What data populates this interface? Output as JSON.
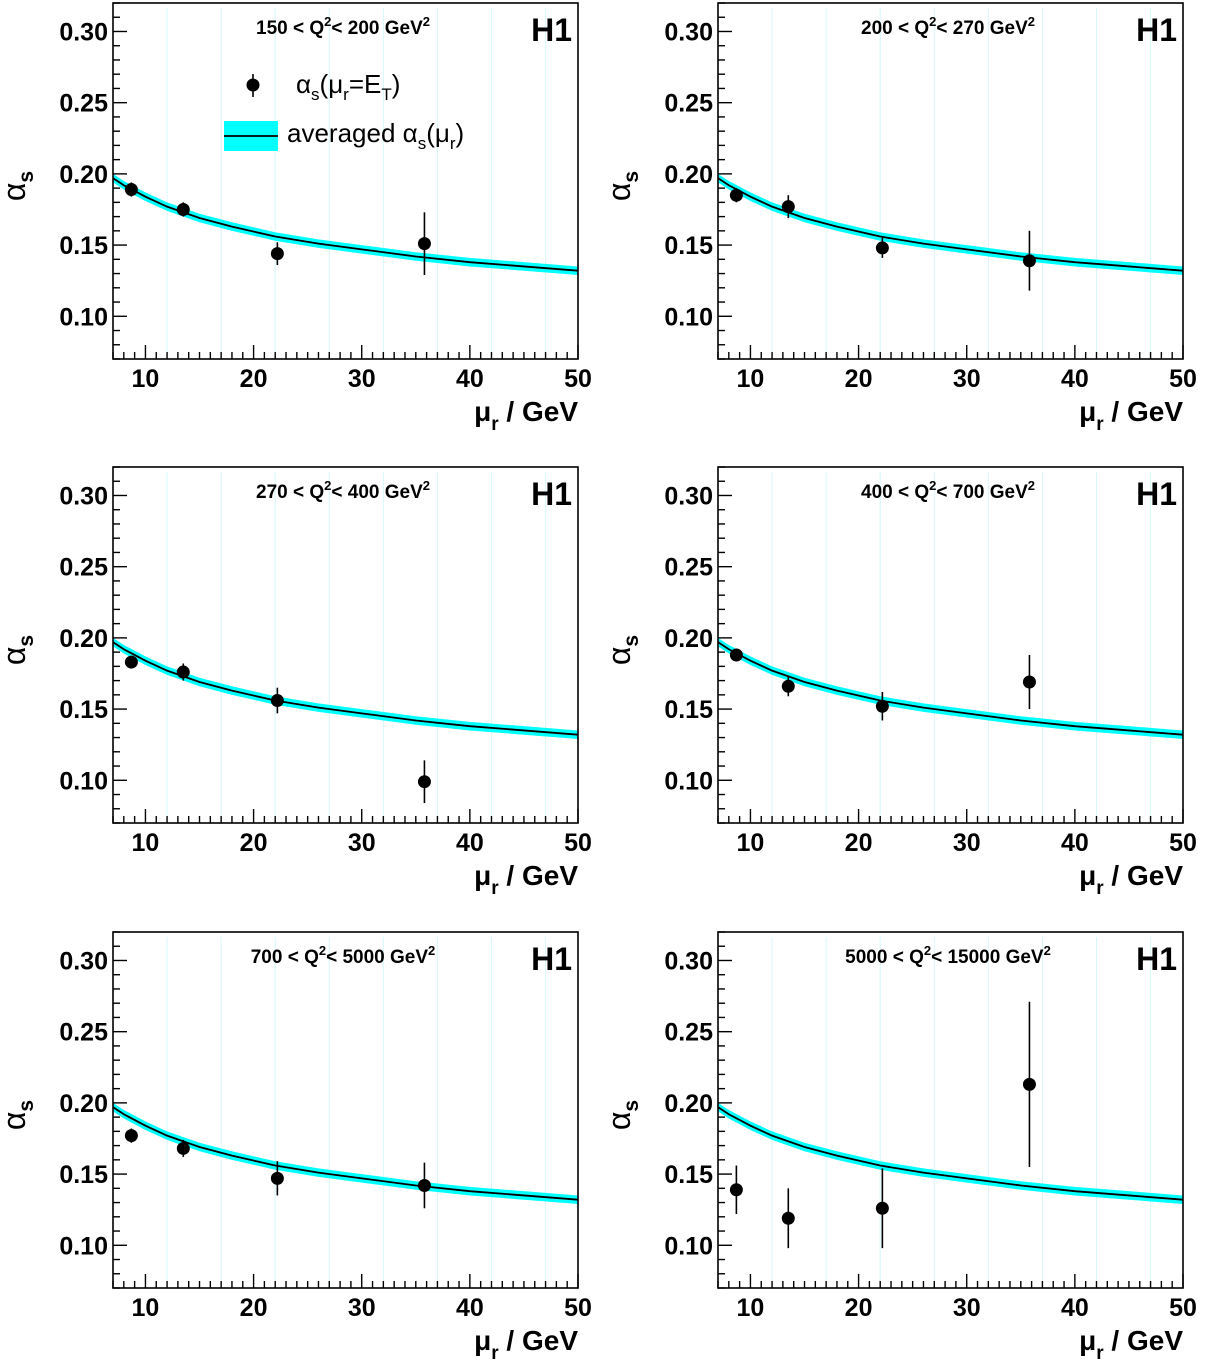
{
  "colors": {
    "band": "#00ffff",
    "curve": "#000000",
    "points": "#000000",
    "axes": "#000000",
    "background": "#ffffff"
  },
  "axis_titles": {
    "x_main": "μ",
    "x_sub": "r",
    "x_unit": " / GeV",
    "y_main": "α",
    "y_sub": "s"
  },
  "legend": {
    "points_main": "α",
    "points_sub": "s",
    "points_rest_open": "(μ",
    "points_rest_sub": "r",
    "points_rest_eq": "=E",
    "points_rest_sub2": "T",
    "points_rest_close": ")",
    "band_text": "averaged α",
    "band_sub": "s",
    "band_open": "(μ",
    "band_sub2": "r",
    "band_close": ")"
  },
  "chart_data": [
    {
      "type": "scatter",
      "experiment_label": "H1",
      "range_label": {
        "pre": "150 < Q",
        "sup": "2",
        "mid": "< 200 GeV",
        "sup2": "2"
      },
      "xlim": [
        7,
        50
      ],
      "ylim": [
        0.07,
        0.32
      ],
      "x_ticks": [
        "10",
        "20",
        "30",
        "40",
        "50"
      ],
      "y_ticks": [
        "0.10",
        "0.15",
        "0.20",
        "0.25",
        "0.30"
      ],
      "points": [
        {
          "x": 8.7,
          "y": 0.189,
          "err": 0.005
        },
        {
          "x": 13.5,
          "y": 0.175,
          "err": 0.005
        },
        {
          "x": 22.2,
          "y": 0.144,
          "err": 0.008
        },
        {
          "x": 35.8,
          "y": 0.151,
          "err": 0.022
        }
      ],
      "curve": {
        "x": [
          7,
          8,
          10,
          12,
          15,
          18,
          22,
          26,
          30,
          35,
          40,
          45,
          50
        ],
        "y": [
          0.197,
          0.192,
          0.184,
          0.177,
          0.169,
          0.163,
          0.156,
          0.151,
          0.147,
          0.142,
          0.138,
          0.135,
          0.132
        ]
      },
      "band_half_width": 0.003
    },
    {
      "type": "scatter",
      "experiment_label": "H1",
      "range_label": {
        "pre": "200 < Q",
        "sup": "2",
        "mid": "< 270 GeV",
        "sup2": "2"
      },
      "xlim": [
        7,
        50
      ],
      "ylim": [
        0.07,
        0.32
      ],
      "x_ticks": [
        "10",
        "20",
        "30",
        "40",
        "50"
      ],
      "y_ticks": [
        "0.10",
        "0.15",
        "0.20",
        "0.25",
        "0.30"
      ],
      "points": [
        {
          "x": 8.7,
          "y": 0.185,
          "err": 0.005
        },
        {
          "x": 13.5,
          "y": 0.177,
          "err": 0.008
        },
        {
          "x": 22.2,
          "y": 0.148,
          "err": 0.007
        },
        {
          "x": 35.8,
          "y": 0.139,
          "err": 0.021
        }
      ],
      "curve": {
        "x": [
          7,
          8,
          10,
          12,
          15,
          18,
          22,
          26,
          30,
          35,
          40,
          45,
          50
        ],
        "y": [
          0.197,
          0.192,
          0.184,
          0.177,
          0.169,
          0.163,
          0.156,
          0.151,
          0.147,
          0.142,
          0.138,
          0.135,
          0.132
        ]
      },
      "band_half_width": 0.003
    },
    {
      "type": "scatter",
      "experiment_label": "H1",
      "range_label": {
        "pre": "270 < Q",
        "sup": "2",
        "mid": "< 400 GeV",
        "sup2": "2"
      },
      "xlim": [
        7,
        50
      ],
      "ylim": [
        0.07,
        0.32
      ],
      "x_ticks": [
        "10",
        "20",
        "30",
        "40",
        "50"
      ],
      "y_ticks": [
        "0.10",
        "0.15",
        "0.20",
        "0.25",
        "0.30"
      ],
      "points": [
        {
          "x": 8.7,
          "y": 0.183,
          "err": 0.004
        },
        {
          "x": 13.5,
          "y": 0.176,
          "err": 0.006
        },
        {
          "x": 22.2,
          "y": 0.156,
          "err": 0.009
        },
        {
          "x": 35.8,
          "y": 0.099,
          "err": 0.015
        }
      ],
      "curve": {
        "x": [
          7,
          8,
          10,
          12,
          15,
          18,
          22,
          26,
          30,
          35,
          40,
          45,
          50
        ],
        "y": [
          0.197,
          0.192,
          0.184,
          0.177,
          0.169,
          0.163,
          0.156,
          0.151,
          0.147,
          0.142,
          0.138,
          0.135,
          0.132
        ]
      },
      "band_half_width": 0.003
    },
    {
      "type": "scatter",
      "experiment_label": "H1",
      "range_label": {
        "pre": "400 < Q",
        "sup": "2",
        "mid": "< 700 GeV",
        "sup2": "2"
      },
      "xlim": [
        7,
        50
      ],
      "ylim": [
        0.07,
        0.32
      ],
      "x_ticks": [
        "10",
        "20",
        "30",
        "40",
        "50"
      ],
      "y_ticks": [
        "0.10",
        "0.15",
        "0.20",
        "0.25",
        "0.30"
      ],
      "points": [
        {
          "x": 8.7,
          "y": 0.188,
          "err": 0.004
        },
        {
          "x": 13.5,
          "y": 0.166,
          "err": 0.007
        },
        {
          "x": 22.2,
          "y": 0.152,
          "err": 0.01
        },
        {
          "x": 35.8,
          "y": 0.169,
          "err": 0.019
        }
      ],
      "curve": {
        "x": [
          7,
          8,
          10,
          12,
          15,
          18,
          22,
          26,
          30,
          35,
          40,
          45,
          50
        ],
        "y": [
          0.197,
          0.192,
          0.184,
          0.177,
          0.169,
          0.163,
          0.156,
          0.151,
          0.147,
          0.142,
          0.138,
          0.135,
          0.132
        ]
      },
      "band_half_width": 0.003
    },
    {
      "type": "scatter",
      "experiment_label": "H1",
      "range_label": {
        "pre": "700 < Q",
        "sup": "2",
        "mid": "< 5000 GeV",
        "sup2": "2"
      },
      "xlim": [
        7,
        50
      ],
      "ylim": [
        0.07,
        0.32
      ],
      "x_ticks": [
        "10",
        "20",
        "30",
        "40",
        "50"
      ],
      "y_ticks": [
        "0.10",
        "0.15",
        "0.20",
        "0.25",
        "0.30"
      ],
      "points": [
        {
          "x": 8.7,
          "y": 0.177,
          "err": 0.005
        },
        {
          "x": 13.5,
          "y": 0.168,
          "err": 0.006
        },
        {
          "x": 22.2,
          "y": 0.147,
          "err": 0.012
        },
        {
          "x": 35.8,
          "y": 0.142,
          "err": 0.016
        }
      ],
      "curve": {
        "x": [
          7,
          8,
          10,
          12,
          15,
          18,
          22,
          26,
          30,
          35,
          40,
          45,
          50
        ],
        "y": [
          0.197,
          0.192,
          0.184,
          0.177,
          0.169,
          0.163,
          0.156,
          0.151,
          0.147,
          0.142,
          0.138,
          0.135,
          0.132
        ]
      },
      "band_half_width": 0.003
    },
    {
      "type": "scatter",
      "experiment_label": "H1",
      "range_label": {
        "pre": "5000 < Q",
        "sup": "2",
        "mid": "< 15000 GeV",
        "sup2": "2"
      },
      "xlim": [
        7,
        50
      ],
      "ylim": [
        0.07,
        0.32
      ],
      "x_ticks": [
        "10",
        "20",
        "30",
        "40",
        "50"
      ],
      "y_ticks": [
        "0.10",
        "0.15",
        "0.20",
        "0.25",
        "0.30"
      ],
      "points": [
        {
          "x": 8.7,
          "y": 0.139,
          "err": 0.017
        },
        {
          "x": 13.5,
          "y": 0.119,
          "err": 0.021
        },
        {
          "x": 22.2,
          "y": 0.126,
          "err": 0.028
        },
        {
          "x": 35.8,
          "y": 0.213,
          "err": 0.058
        }
      ],
      "curve": {
        "x": [
          7,
          8,
          10,
          12,
          15,
          18,
          22,
          26,
          30,
          35,
          40,
          45,
          50
        ],
        "y": [
          0.197,
          0.192,
          0.184,
          0.177,
          0.169,
          0.163,
          0.156,
          0.151,
          0.147,
          0.142,
          0.138,
          0.135,
          0.132
        ]
      },
      "band_half_width": 0.003
    }
  ]
}
